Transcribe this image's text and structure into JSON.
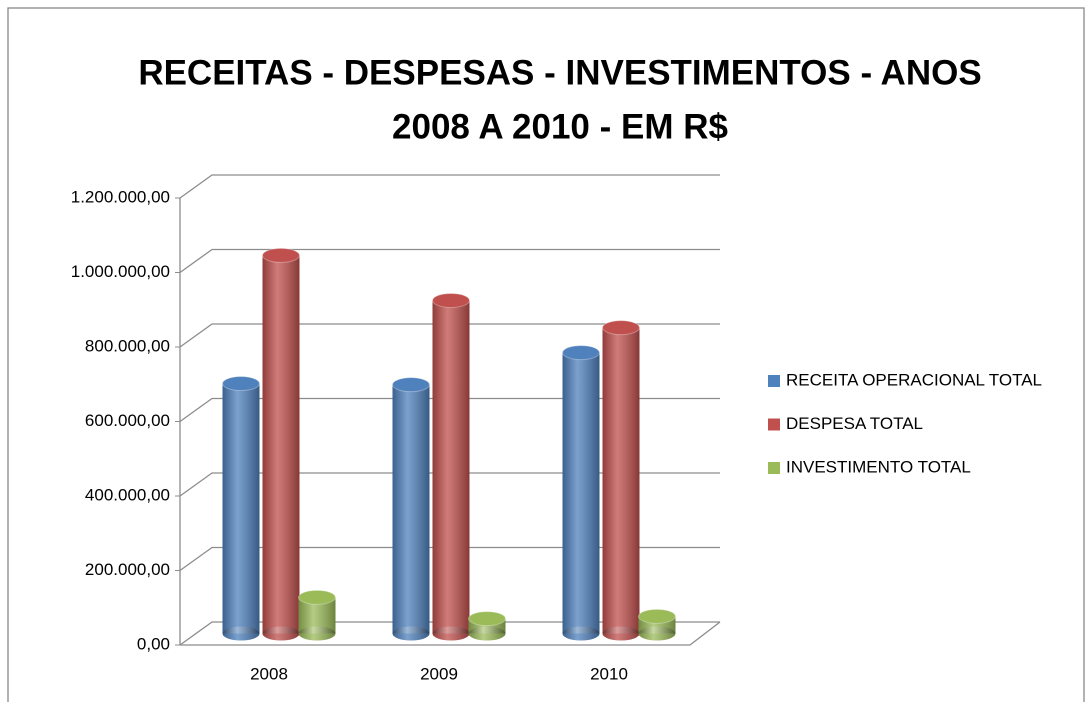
{
  "chart_data": {
    "type": "bar3d",
    "title": [
      "RECEITAS  - DESPESAS - INVESTIMENTOS - ANOS",
      "2008 A 2010 - EM R$"
    ],
    "categories": [
      "2008",
      "2009",
      "2010"
    ],
    "series": [
      {
        "name": "RECEITA OPERACIONAL TOTAL",
        "color": "#4f81bd",
        "values": [
          671000,
          668000,
          754000
        ]
      },
      {
        "name": "DESPESA TOTAL",
        "color": "#c0504d",
        "values": [
          1015000,
          894000,
          821000
        ]
      },
      {
        "name": "INVESTIMENTO TOTAL",
        "color": "#9bbb59",
        "values": [
          97000,
          40000,
          46000
        ]
      }
    ],
    "ylim": [
      0,
      1200000
    ],
    "yticks": [
      {
        "value": 0,
        "label": "0,00"
      },
      {
        "value": 200000,
        "label": "200.000,00"
      },
      {
        "value": 400000,
        "label": "400.000,00"
      },
      {
        "value": 600000,
        "label": "600.000,00"
      },
      {
        "value": 800000,
        "label": "800.000,00"
      },
      {
        "value": 1000000,
        "label": "1.000.000,00"
      },
      {
        "value": 1200000,
        "label": "1.200.000,00"
      }
    ],
    "grid": true,
    "legend": "right"
  }
}
